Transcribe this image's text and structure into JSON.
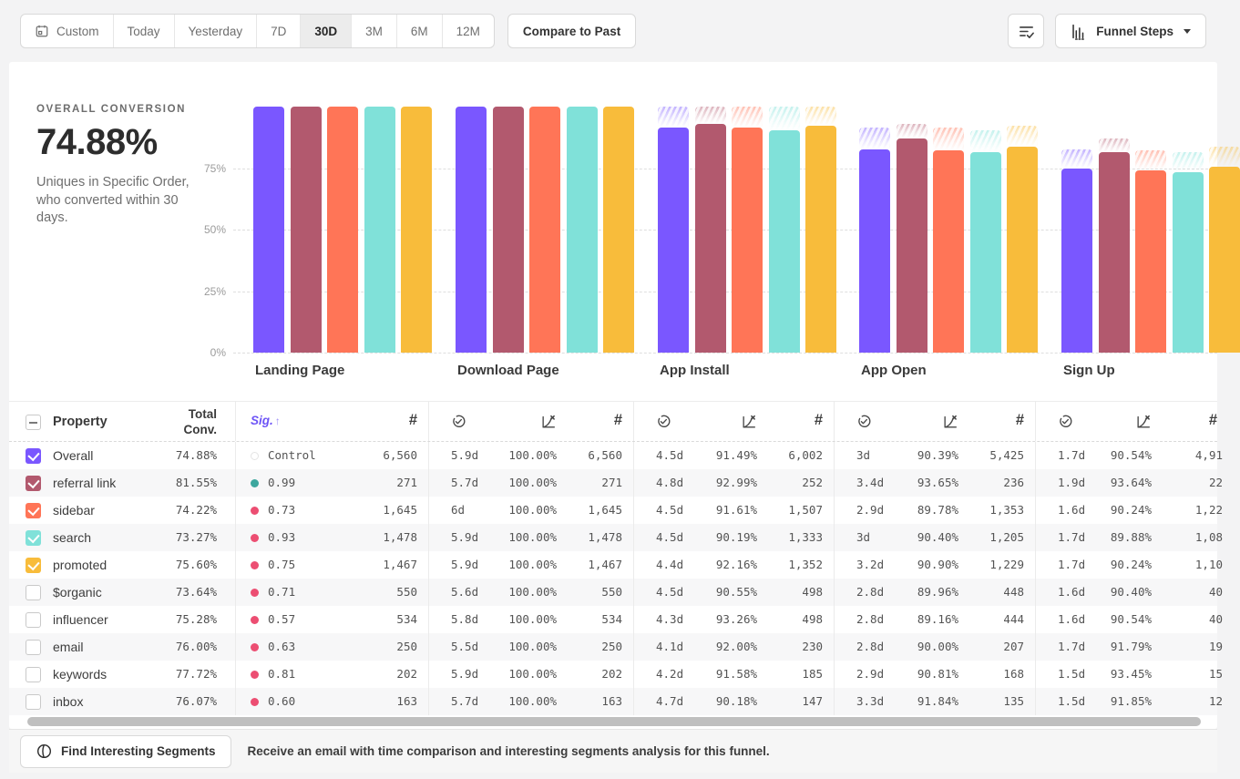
{
  "toolbar": {
    "ranges": [
      {
        "label": "Custom",
        "selected": false,
        "icon": "calendar-icon"
      },
      {
        "label": "Today",
        "selected": false
      },
      {
        "label": "Yesterday",
        "selected": false
      },
      {
        "label": "7D",
        "selected": false
      },
      {
        "label": "30D",
        "selected": true
      },
      {
        "label": "3M",
        "selected": false
      },
      {
        "label": "6M",
        "selected": false
      },
      {
        "label": "12M",
        "selected": false
      }
    ],
    "compare_label": "Compare to Past",
    "view_label": "Funnel Steps"
  },
  "icons": {
    "range_custom": "calendar-icon",
    "filter_button": "filter-check-icon",
    "view_button": "bar-chart-icon",
    "view_caret": "caret-down-icon",
    "footer_button": "segments-icon",
    "col_time": "time-to-convert-icon",
    "col_rate": "conversion-rate-icon",
    "col_count_glyph": "#",
    "sig_sort": "arrow-up-icon"
  },
  "overview": {
    "label": "OVERALL CONVERSION",
    "value": "74.88%",
    "description": "Uniques in Specific Order, who converted within 30 days."
  },
  "chart_data": {
    "type": "bar",
    "unit": "percent of first step",
    "steps": [
      "Landing Page",
      "Download Page",
      "App Install",
      "App Open",
      "Sign Up"
    ],
    "yticks": [
      {
        "label": "75%",
        "value": 75
      },
      {
        "label": "50%",
        "value": 50
      },
      {
        "label": "25%",
        "value": 25
      },
      {
        "label": "0%",
        "value": 0
      }
    ],
    "ylim": [
      0,
      100
    ],
    "grid": "dashed",
    "series": [
      {
        "name": "Overall",
        "color": "#7A57FF",
        "values": [
          100,
          100,
          91.49,
          82.7,
          74.88
        ]
      },
      {
        "name": "referral link",
        "color": "#B2596E",
        "values": [
          100,
          100,
          92.99,
          87.08,
          81.55
        ]
      },
      {
        "name": "sidebar",
        "color": "#FF7557",
        "values": [
          100,
          100,
          91.61,
          82.25,
          74.22
        ]
      },
      {
        "name": "search",
        "color": "#80E1D9",
        "values": [
          100,
          100,
          90.19,
          81.53,
          73.27
        ]
      },
      {
        "name": "promoted",
        "color": "#F8BC3B",
        "values": [
          100,
          100,
          92.16,
          83.77,
          75.6
        ]
      }
    ]
  },
  "table": {
    "header": {
      "property": "Property",
      "total": "Total Conv.",
      "sig": "Sig."
    },
    "sig_colors": {
      "control": "#e4e4e4",
      "high": "#3DA79E",
      "low": "#EC4E72"
    },
    "rows": [
      {
        "property": "Overall",
        "checked": true,
        "color": "#7A57FF",
        "total": "74.88%",
        "sig": "Control",
        "sig_type": "control",
        "cells": [
          [
            "6,560"
          ],
          [
            "5.9d",
            "100.00%",
            "6,560"
          ],
          [
            "4.5d",
            "91.49%",
            "6,002"
          ],
          [
            "3d",
            "90.39%",
            "5,425"
          ],
          [
            "1.7d",
            "90.54%",
            "4,91"
          ]
        ]
      },
      {
        "property": "referral link",
        "checked": true,
        "color": "#B2596E",
        "total": "81.55%",
        "sig": "0.99",
        "sig_type": "high",
        "cells": [
          [
            "271"
          ],
          [
            "5.7d",
            "100.00%",
            "271"
          ],
          [
            "4.8d",
            "92.99%",
            "252"
          ],
          [
            "3.4d",
            "93.65%",
            "236"
          ],
          [
            "1.9d",
            "93.64%",
            "22"
          ]
        ]
      },
      {
        "property": "sidebar",
        "checked": true,
        "color": "#FF7557",
        "total": "74.22%",
        "sig": "0.73",
        "sig_type": "low",
        "cells": [
          [
            "1,645"
          ],
          [
            "6d",
            "100.00%",
            "1,645"
          ],
          [
            "4.5d",
            "91.61%",
            "1,507"
          ],
          [
            "2.9d",
            "89.78%",
            "1,353"
          ],
          [
            "1.6d",
            "90.24%",
            "1,22"
          ]
        ]
      },
      {
        "property": "search",
        "checked": true,
        "color": "#80E1D9",
        "total": "73.27%",
        "sig": "0.93",
        "sig_type": "low",
        "cells": [
          [
            "1,478"
          ],
          [
            "5.9d",
            "100.00%",
            "1,478"
          ],
          [
            "4.5d",
            "90.19%",
            "1,333"
          ],
          [
            "3d",
            "90.40%",
            "1,205"
          ],
          [
            "1.7d",
            "89.88%",
            "1,08"
          ]
        ]
      },
      {
        "property": "promoted",
        "checked": true,
        "color": "#F8BC3B",
        "total": "75.60%",
        "sig": "0.75",
        "sig_type": "low",
        "cells": [
          [
            "1,467"
          ],
          [
            "5.9d",
            "100.00%",
            "1,467"
          ],
          [
            "4.4d",
            "92.16%",
            "1,352"
          ],
          [
            "3.2d",
            "90.90%",
            "1,229"
          ],
          [
            "1.7d",
            "90.24%",
            "1,10"
          ]
        ]
      },
      {
        "property": "$organic",
        "checked": false,
        "color": null,
        "total": "73.64%",
        "sig": "0.71",
        "sig_type": "low",
        "cells": [
          [
            "550"
          ],
          [
            "5.6d",
            "100.00%",
            "550"
          ],
          [
            "4.5d",
            "90.55%",
            "498"
          ],
          [
            "2.8d",
            "89.96%",
            "448"
          ],
          [
            "1.6d",
            "90.40%",
            "40"
          ]
        ]
      },
      {
        "property": "influencer",
        "checked": false,
        "color": null,
        "total": "75.28%",
        "sig": "0.57",
        "sig_type": "low",
        "cells": [
          [
            "534"
          ],
          [
            "5.8d",
            "100.00%",
            "534"
          ],
          [
            "4.3d",
            "93.26%",
            "498"
          ],
          [
            "2.8d",
            "89.16%",
            "444"
          ],
          [
            "1.6d",
            "90.54%",
            "40"
          ]
        ]
      },
      {
        "property": "email",
        "checked": false,
        "color": null,
        "total": "76.00%",
        "sig": "0.63",
        "sig_type": "low",
        "cells": [
          [
            "250"
          ],
          [
            "5.5d",
            "100.00%",
            "250"
          ],
          [
            "4.1d",
            "92.00%",
            "230"
          ],
          [
            "2.8d",
            "90.00%",
            "207"
          ],
          [
            "1.7d",
            "91.79%",
            "19"
          ]
        ]
      },
      {
        "property": "keywords",
        "checked": false,
        "color": null,
        "total": "77.72%",
        "sig": "0.81",
        "sig_type": "low",
        "cells": [
          [
            "202"
          ],
          [
            "5.9d",
            "100.00%",
            "202"
          ],
          [
            "4.2d",
            "91.58%",
            "185"
          ],
          [
            "2.9d",
            "90.81%",
            "168"
          ],
          [
            "1.5d",
            "93.45%",
            "15"
          ]
        ]
      },
      {
        "property": "inbox",
        "checked": false,
        "color": null,
        "total": "76.07%",
        "sig": "0.60",
        "sig_type": "low",
        "cells": [
          [
            "163"
          ],
          [
            "5.7d",
            "100.00%",
            "163"
          ],
          [
            "4.7d",
            "90.18%",
            "147"
          ],
          [
            "3.3d",
            "91.84%",
            "135"
          ],
          [
            "1.5d",
            "91.85%",
            "12"
          ]
        ]
      }
    ]
  },
  "footer": {
    "button_label": "Find Interesting Segments",
    "note": "Receive an email with time comparison and interesting segments analysis for this funnel."
  }
}
